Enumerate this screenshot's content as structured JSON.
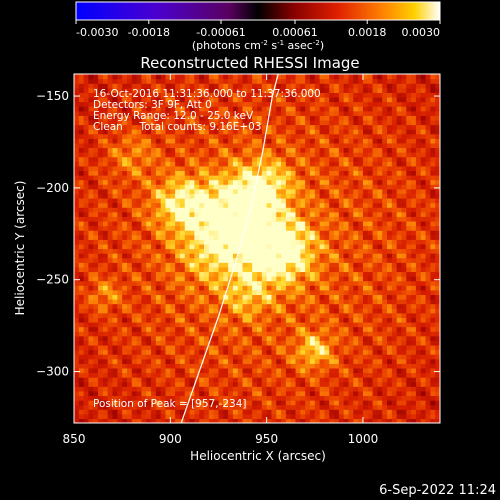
{
  "chart_data": {
    "type": "heatmap",
    "title": "Reconstructed RHESSI Image",
    "xlabel": "Heliocentric X (arcsec)",
    "ylabel": "Heliocentric Y (arcsec)",
    "xlim": [
      850,
      1040
    ],
    "ylim": [
      -328,
      -138
    ],
    "x_ticks": [
      850,
      900,
      950,
      1000
    ],
    "y_ticks": [
      -150,
      -200,
      -250,
      -300
    ],
    "colorbar": {
      "ticks": [
        "-0.0030",
        "-0.0018",
        "-0.00061",
        "0.00061",
        "0.0018",
        "0.0030"
      ],
      "range": [
        -0.003,
        0.003
      ],
      "unit_parts": [
        "(photons cm",
        "-2",
        " s",
        "-1",
        " asec",
        "-2",
        ")"
      ]
    },
    "annotations": [
      "16-Oct-2016 11:31:36.000 to 11:37:36.000",
      "Detectors: 3F 9F, Att 0",
      "Energy Range: 12.0 - 25.0 keV",
      "Clean     Total counts: 9.16E+03"
    ],
    "peak_label": "Position of Peak = [957,-234]",
    "peak": [
      957,
      -234
    ],
    "limb_curve": [
      [
        905,
        -330
      ],
      [
        915,
        -300
      ],
      [
        925,
        -270
      ],
      [
        934,
        -240
      ],
      [
        942,
        -210
      ],
      [
        948,
        -180
      ],
      [
        953,
        -150
      ],
      [
        956,
        -138
      ]
    ],
    "sources": [
      {
        "x": 957,
        "y": -234,
        "amp": 1.0,
        "sigma": 12
      },
      {
        "x": 935,
        "y": -212,
        "amp": 0.85,
        "sigma": 14
      },
      {
        "x": 905,
        "y": -208,
        "amp": 0.7,
        "sigma": 10
      },
      {
        "x": 950,
        "y": -198,
        "amp": 0.55,
        "sigma": 10
      },
      {
        "x": 925,
        "y": -232,
        "amp": 0.6,
        "sigma": 14
      },
      {
        "x": 975,
        "y": -288,
        "amp": 0.6,
        "sigma": 7
      },
      {
        "x": 880,
        "y": -182,
        "amp": 0.35,
        "sigma": 9
      },
      {
        "x": 866,
        "y": -258,
        "amp": 0.4,
        "sigma": 6
      },
      {
        "x": 940,
        "y": -258,
        "amp": 0.4,
        "sigma": 9
      }
    ]
  },
  "footer": {
    "date": "6-Sep-2022 11:24"
  }
}
